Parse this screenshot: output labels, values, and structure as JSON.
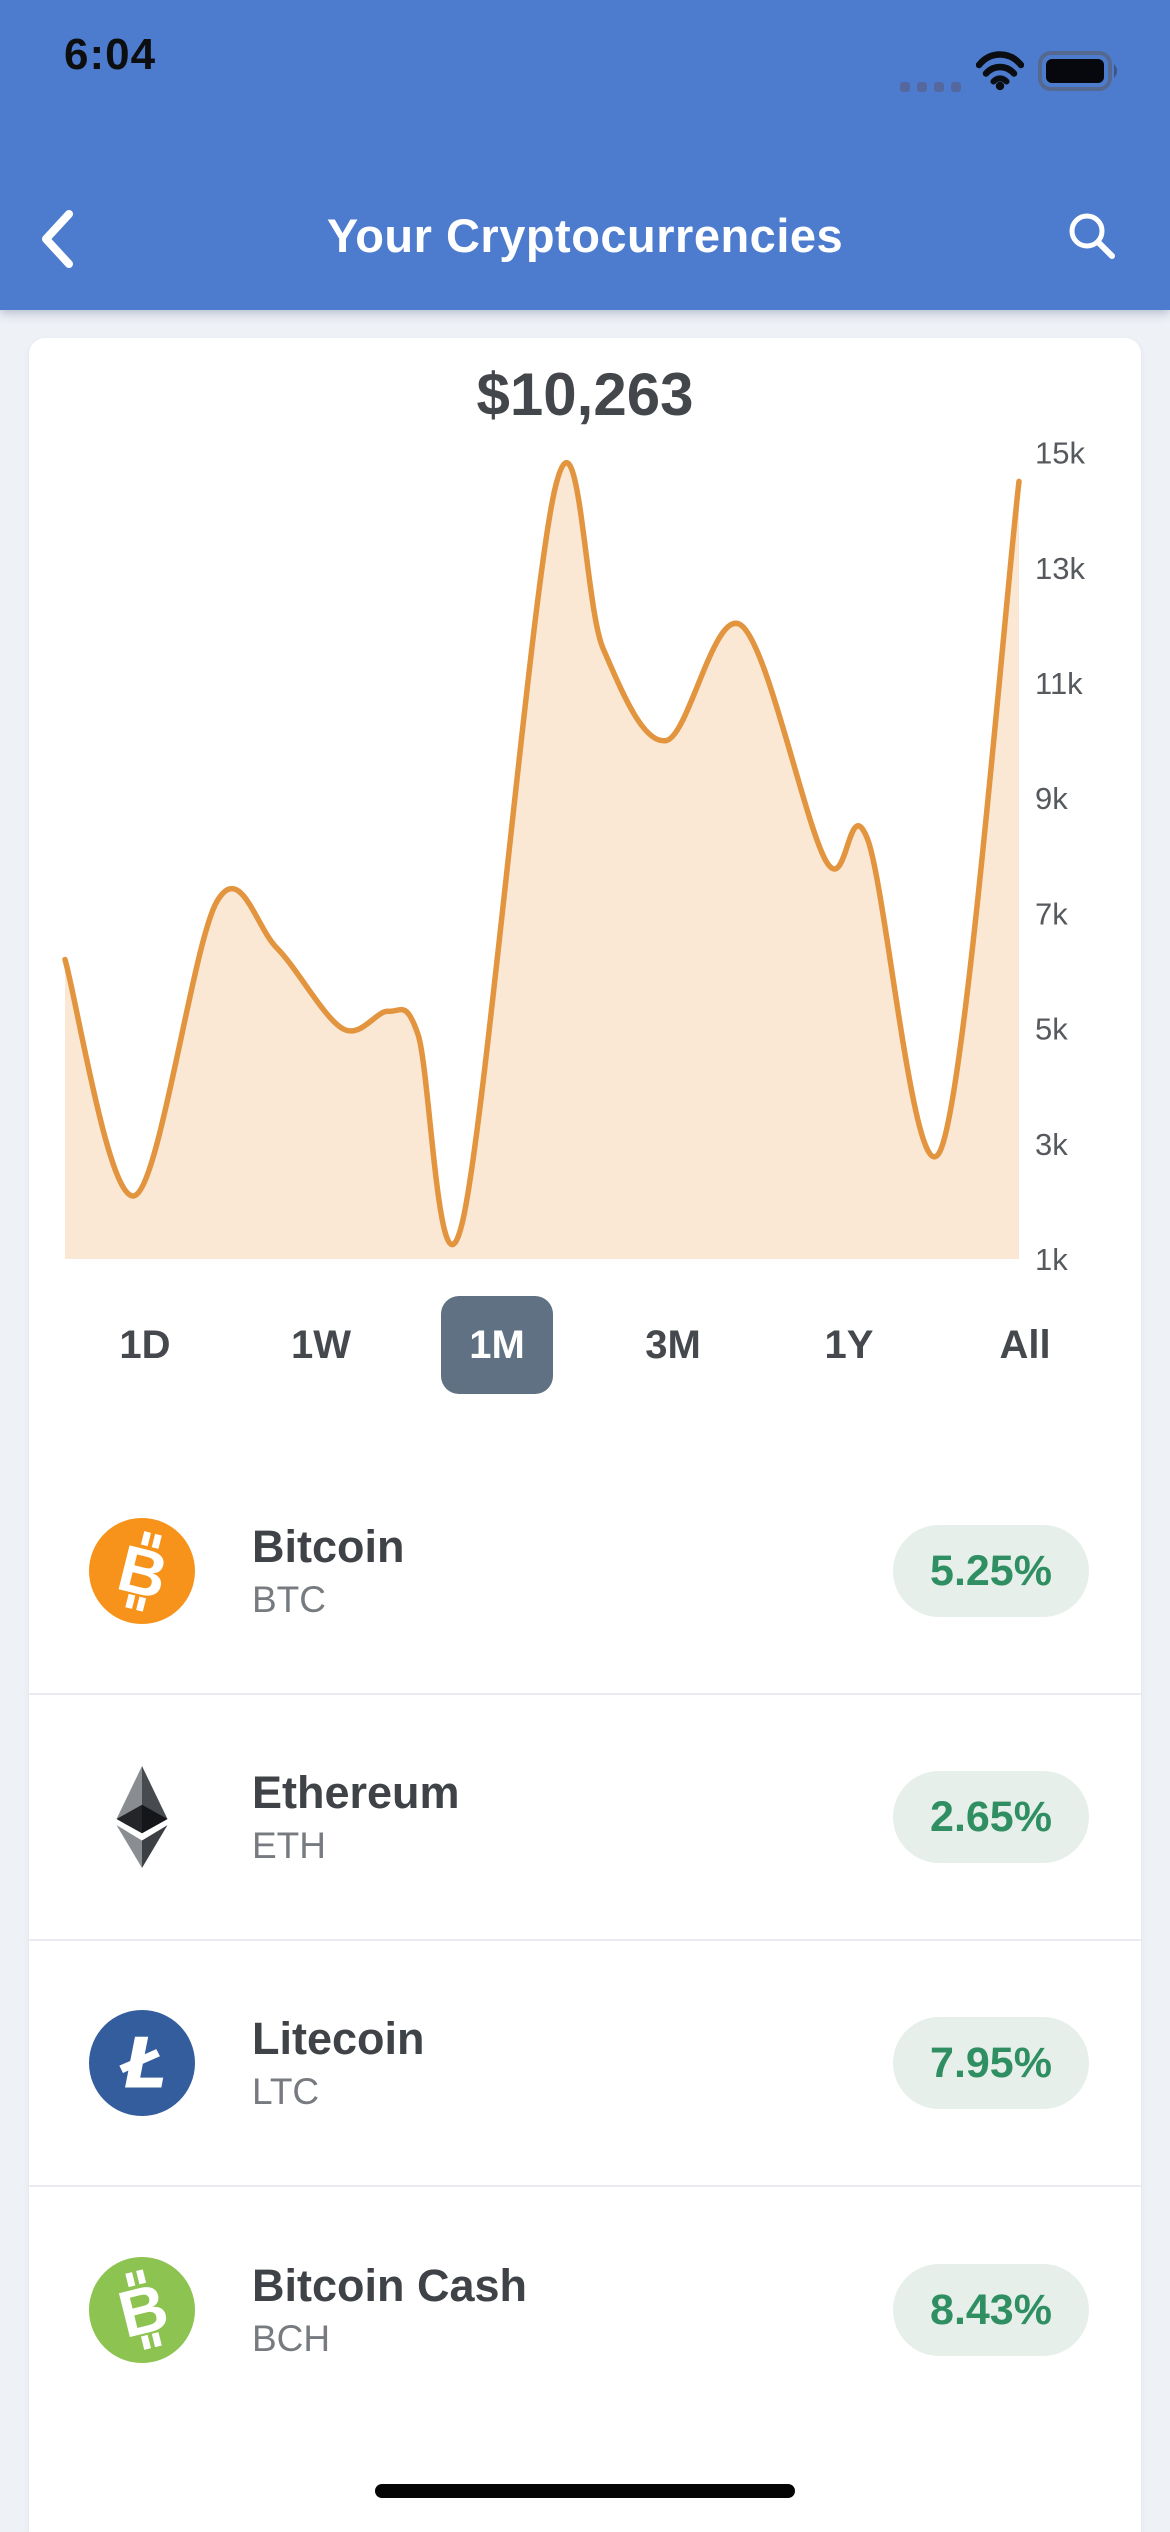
{
  "status_bar": {
    "time": "6:04"
  },
  "nav": {
    "title": "Your Cryptocurrencies"
  },
  "portfolio": {
    "total_value": "$10,263"
  },
  "chart_data": {
    "type": "area",
    "title": "$10,263",
    "xlabel": "",
    "ylabel": "",
    "unit": "USD (thousands)",
    "x": [
      0,
      0.073,
      0.159,
      0.222,
      0.291,
      0.339,
      0.37,
      0.416,
      0.514,
      0.564,
      0.63,
      0.709,
      0.798,
      0.841,
      0.918,
      1
    ],
    "values_k": [
      6.2,
      2.1,
      7.2,
      6.4,
      5.0,
      5.3,
      4.9,
      1.6,
      14.4,
      11.6,
      10.0,
      12.0,
      7.9,
      8.3,
      2.9,
      14.5
    ],
    "y_ticks": [
      {
        "label": "15k",
        "value": 15
      },
      {
        "label": "13k",
        "value": 13
      },
      {
        "label": "11k",
        "value": 11
      },
      {
        "label": "9k",
        "value": 9
      },
      {
        "label": "7k",
        "value": 7
      },
      {
        "label": "5k",
        "value": 5
      },
      {
        "label": "3k",
        "value": 3
      },
      {
        "label": "1k",
        "value": 1
      }
    ],
    "ylim": [
      1,
      15
    ],
    "grid": false,
    "legend": false,
    "line_color": "#e2953e",
    "fill_color": "#fae8d5"
  },
  "time_ranges": {
    "options": [
      "1D",
      "1W",
      "1M",
      "3M",
      "1Y",
      "All"
    ],
    "selected": "1M"
  },
  "coins": [
    {
      "name": "Bitcoin",
      "ticker": "BTC",
      "change": "5.25%",
      "icon": "bitcoin-icon",
      "icon_bg": "#f7931a"
    },
    {
      "name": "Ethereum",
      "ticker": "ETH",
      "change": "2.65%",
      "icon": "ethereum-icon",
      "icon_bg": "transparent"
    },
    {
      "name": "Litecoin",
      "ticker": "LTC",
      "change": "7.95%",
      "icon": "litecoin-icon",
      "icon_bg": "#345d9d"
    },
    {
      "name": "Bitcoin Cash",
      "ticker": "BCH",
      "change": "8.43%",
      "icon": "bitcoin-cash-icon",
      "icon_bg": "#8dc351"
    }
  ],
  "colors": {
    "header_blue": "#4d7cce",
    "page_bg": "#eef1f6",
    "chart_line": "#e2953e",
    "chart_fill": "#fae8d5",
    "selected_range_bg": "#5f7183",
    "positive_green": "#2f8f62",
    "positive_pill_bg": "#e6efe9"
  }
}
